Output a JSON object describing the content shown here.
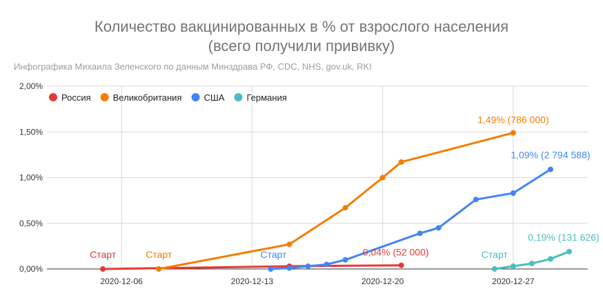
{
  "chart_data": {
    "type": "line",
    "title": [
      "Количество вакцинированных в % от взрослого населения",
      "(всего получили прививку)"
    ],
    "subtitle": "Инфографика Михаила Зеленского по данным Минздрава РФ, CDC, NHS, gov.uk, RKI",
    "xlabel": "",
    "ylabel": "",
    "x_ticks": [
      "2020-12-06",
      "2020-12-13",
      "2020-12-20",
      "2020-12-27"
    ],
    "y_ticks": [
      "0,00%",
      "0,50%",
      "1,00%",
      "1,50%",
      "2,00%"
    ],
    "ylim": [
      0,
      2.0
    ],
    "xlim": [
      "2020-12-02",
      "2020-12-31"
    ],
    "grid": true,
    "legend_position": "top-left",
    "series": [
      {
        "name": "Россия",
        "color": "#e53935",
        "x": [
          "2020-12-05",
          "2020-12-15",
          "2020-12-21"
        ],
        "y": [
          0.0,
          0.03,
          0.04
        ],
        "start_label": "Старт",
        "end_label": "0,04% (52 000)"
      },
      {
        "name": "Великобритания",
        "color": "#f57c00",
        "x": [
          "2020-12-08",
          "2020-12-15",
          "2020-12-18",
          "2020-12-20",
          "2020-12-21",
          "2020-12-27"
        ],
        "y": [
          0.0,
          0.27,
          0.67,
          1.0,
          1.17,
          1.49
        ],
        "start_label": "Старт",
        "end_label": "1,49% (786 000)"
      },
      {
        "name": "США",
        "color": "#4285f4",
        "x": [
          "2020-12-14",
          "2020-12-15",
          "2020-12-16",
          "2020-12-17",
          "2020-12-18",
          "2020-12-22",
          "2020-12-23",
          "2020-12-25",
          "2020-12-27",
          "2020-12-29"
        ],
        "y": [
          0.0,
          0.01,
          0.03,
          0.05,
          0.1,
          0.39,
          0.45,
          0.76,
          0.83,
          1.09
        ],
        "start_label": "Старт",
        "end_label": "1,09% (2 794 588)"
      },
      {
        "name": "Германия",
        "color": "#4bbdc0",
        "x": [
          "2020-12-26",
          "2020-12-27",
          "2020-12-28",
          "2020-12-29",
          "2020-12-30"
        ],
        "y": [
          0.0,
          0.03,
          0.06,
          0.11,
          0.19
        ],
        "start_label": "Старт",
        "end_label": "0,19% (131 626)"
      }
    ]
  }
}
